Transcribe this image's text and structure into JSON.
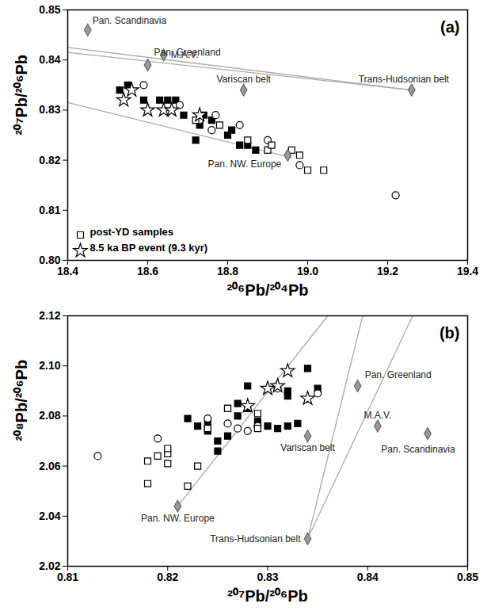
{
  "chart_data": [
    {
      "type": "scatter",
      "title": "(a)",
      "x_label": "²⁰⁶Pb/²⁰⁴Pb",
      "y_label": "²⁰⁷Pb/²⁰⁶Pb",
      "xlim": [
        18.4,
        19.4
      ],
      "xticks": [
        18.4,
        18.6,
        18.8,
        {
          "value": 19,
          "label": "19.0"
        },
        19.2,
        19.4
      ],
      "ylim": [
        0.8,
        0.85
      ],
      "yticks": [
        {
          "value": 0.8,
          "label": "0.80"
        },
        0.81,
        0.82,
        0.83,
        0.84,
        0.85
      ],
      "legend": "bottom-left",
      "series": [
        {
          "type": "line",
          "color": "#aaaaaa",
          "x": [
            18.4,
            19.26
          ],
          "values": [
            0.8425,
            0.834
          ]
        },
        {
          "type": "line",
          "color": "#aaaaaa",
          "x": [
            18.4,
            19.26
          ],
          "values": [
            0.8415,
            0.834
          ]
        },
        {
          "type": "line",
          "color": "#aaaaaa",
          "x": [
            18.4,
            18.96
          ],
          "values": [
            0.8315,
            0.8205
          ]
        },
        {
          "type": "scatter",
          "marker": "square",
          "color": "#000000",
          "x": [
            18.53,
            18.55,
            18.59,
            18.63,
            18.65,
            18.67,
            18.69,
            18.72,
            18.73,
            18.74,
            18.76,
            18.8,
            18.81,
            18.83,
            18.85,
            18.87
          ],
          "values": [
            0.834,
            0.835,
            0.832,
            0.832,
            0.832,
            0.832,
            0.829,
            0.824,
            0.827,
            0.829,
            0.828,
            0.825,
            0.826,
            0.823,
            0.823,
            0.822
          ]
        },
        {
          "type": "scatter",
          "marker": "open_circle",
          "color": "#000000",
          "x": [
            18.59,
            18.68,
            18.73,
            18.77,
            18.83,
            18.9,
            18.98,
            19.22,
            18.76
          ],
          "values": [
            0.835,
            0.831,
            0.828,
            0.829,
            0.827,
            0.824,
            0.819,
            0.813,
            0.826
          ]
        },
        {
          "type": "scatter",
          "name": "post-YD samples",
          "marker": "open_square",
          "color": "#000000",
          "x": [
            18.78,
            18.85,
            18.9,
            18.91,
            18.96,
            18.98,
            19.0,
            19.04,
            18.72
          ],
          "values": [
            0.827,
            0.824,
            0.822,
            0.823,
            0.822,
            0.821,
            0.818,
            0.818,
            0.828
          ]
        },
        {
          "type": "scatter",
          "name": "8.5 ka BP event (9.3 kyr)",
          "marker": "open_star",
          "color": "#000000",
          "x": [
            18.54,
            18.56,
            18.6,
            18.64,
            18.66,
            18.73
          ],
          "values": [
            0.832,
            0.834,
            0.83,
            0.83,
            0.83,
            0.829
          ]
        },
        {
          "type": "scatter",
          "marker": "diamond",
          "color": "#999999",
          "x": [
            18.45,
            18.6,
            18.64,
            18.84,
            19.26,
            18.95
          ],
          "values": [
            0.846,
            0.839,
            0.841,
            0.834,
            0.834,
            0.821
          ],
          "labels": [
            "Pan. Scandinavia",
            "Pan. Greenland",
            "M.A.V.",
            "Variscan belt",
            "Trans-Hudsonian belt",
            "Pan. NW. Europe"
          ]
        }
      ]
    },
    {
      "type": "scatter",
      "title": "(b)",
      "x_label": "²⁰⁷Pb/²⁰⁶Pb",
      "y_label": "²⁰⁸Pb/²⁰⁶Pb",
      "xlim": [
        0.81,
        0.85
      ],
      "xticks": [
        0.81,
        0.82,
        0.83,
        0.84,
        0.85
      ],
      "ylim": [
        2.02,
        2.12
      ],
      "yticks": [
        2.02,
        2.04,
        2.06,
        2.08,
        {
          "value": 2.1,
          "label": "2.10"
        },
        2.12
      ],
      "series": [
        {
          "type": "line",
          "color": "#aaaaaa",
          "x": [
            0.821,
            0.836
          ],
          "values": [
            2.044,
            2.12
          ]
        },
        {
          "type": "line",
          "color": "#aaaaaa",
          "x": [
            0.834,
            0.8395
          ],
          "values": [
            2.031,
            2.12
          ]
        },
        {
          "type": "line",
          "color": "#aaaaaa",
          "x": [
            0.834,
            0.8445
          ],
          "values": [
            2.031,
            2.12
          ]
        },
        {
          "type": "scatter",
          "marker": "square",
          "color": "#000000",
          "x": [
            0.822,
            0.823,
            0.824,
            0.824,
            0.825,
            0.825,
            0.826,
            0.826,
            0.827,
            0.827,
            0.828,
            0.828,
            0.829,
            0.83,
            0.831,
            0.832,
            0.832,
            0.832,
            0.834,
            0.835,
            0.833
          ],
          "values": [
            2.079,
            2.076,
            2.074,
            2.077,
            2.07,
            2.066,
            2.083,
            2.072,
            2.085,
            2.08,
            2.083,
            2.092,
            2.078,
            2.076,
            2.075,
            2.09,
            2.088,
            2.076,
            2.099,
            2.091,
            2.077
          ]
        },
        {
          "type": "scatter",
          "marker": "open_circle",
          "color": "#000000",
          "x": [
            0.813,
            0.819,
            0.824,
            0.826,
            0.827,
            0.828,
            0.829,
            0.831,
            0.835
          ],
          "values": [
            2.064,
            2.071,
            2.079,
            2.077,
            2.075,
            2.074,
            2.076,
            2.091,
            2.089
          ]
        },
        {
          "type": "scatter",
          "marker": "open_square",
          "color": "#000000",
          "x": [
            0.818,
            0.818,
            0.819,
            0.82,
            0.82,
            0.82,
            0.822,
            0.823,
            0.824,
            0.826,
            0.829,
            0.829
          ],
          "values": [
            2.053,
            2.062,
            2.064,
            2.061,
            2.065,
            2.067,
            2.052,
            2.06,
            2.075,
            2.083,
            2.081,
            2.075
          ]
        },
        {
          "type": "scatter",
          "marker": "open_star",
          "color": "#000000",
          "x": [
            0.828,
            0.83,
            0.832,
            0.834,
            0.831
          ],
          "values": [
            2.084,
            2.091,
            2.098,
            2.087,
            2.092
          ]
        },
        {
          "type": "scatter",
          "marker": "diamond",
          "color": "#999999",
          "x": [
            0.846,
            0.839,
            0.841,
            0.834,
            0.834,
            0.821
          ],
          "values": [
            2.073,
            2.092,
            2.076,
            2.072,
            2.031,
            2.044
          ],
          "labels": [
            "Pan. Scandinavia",
            "Pan. Greenland",
            "M.A.V.",
            "Variscan belt",
            "Trans-Hudsonian belt",
            "Pan. NW. Europe"
          ]
        }
      ]
    }
  ]
}
